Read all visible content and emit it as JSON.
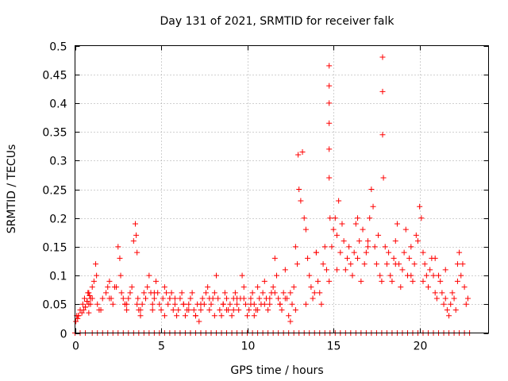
{
  "chart_data": {
    "type": "scatter",
    "title": "Day 131 of 2021, SRMTID for receiver falk",
    "xlabel": "GPS time / hours",
    "ylabel": "SRMTID / TECUs",
    "xlim": [
      0,
      24
    ],
    "ylim": [
      0,
      0.5
    ],
    "xticks": [
      0,
      5,
      10,
      15,
      20
    ],
    "yticks": [
      0,
      0.05,
      0.1,
      0.15,
      0.2,
      0.25,
      0.3,
      0.35,
      0.4,
      0.45,
      0.5
    ],
    "xtick_labels": [
      "0",
      "5",
      "10",
      "15",
      "20"
    ],
    "ytick_labels": [
      "0",
      "0.05",
      "0.1",
      "0.15",
      "0.2",
      "0.25",
      "0.3",
      "0.35",
      "0.4",
      "0.45",
      "0.5"
    ],
    "grid": true,
    "marker": "+",
    "color": "#ff0000",
    "series": [
      {
        "name": "SRMTID",
        "x": [
          0.05,
          0.1,
          0.15,
          0.2,
          0.3,
          0.4,
          0.45,
          0.55,
          0.6,
          0.7,
          0.75,
          0.8,
          0.85,
          0.9,
          1.0,
          1.1,
          1.2,
          1.25,
          1.3,
          1.5,
          1.6,
          1.8,
          1.9,
          2.0,
          2.1,
          2.2,
          2.3,
          2.5,
          2.6,
          2.65,
          2.7,
          2.8,
          2.9,
          3.0,
          3.1,
          3.2,
          3.3,
          3.4,
          3.5,
          3.55,
          3.6,
          3.65,
          3.7,
          3.8,
          3.9,
          4.0,
          4.1,
          4.2,
          4.3,
          4.4,
          4.5,
          4.6,
          4.7,
          4.8,
          4.9,
          5.0,
          5.1,
          5.2,
          5.3,
          5.4,
          5.5,
          5.6,
          5.7,
          5.8,
          5.9,
          6.0,
          6.1,
          6.2,
          6.3,
          6.4,
          6.5,
          6.6,
          6.7,
          6.8,
          6.9,
          7.0,
          7.1,
          7.2,
          7.3,
          7.4,
          7.5,
          7.6,
          7.7,
          7.8,
          7.9,
          8.0,
          8.1,
          8.2,
          8.3,
          8.4,
          8.5,
          8.6,
          8.7,
          8.8,
          8.9,
          9.0,
          9.1,
          9.2,
          9.3,
          9.4,
          9.5,
          9.6,
          9.7,
          9.8,
          9.9,
          10.0,
          10.1,
          10.2,
          10.3,
          10.4,
          10.5,
          10.6,
          10.7,
          10.8,
          10.9,
          11.0,
          11.1,
          11.2,
          11.3,
          11.4,
          11.5,
          11.6,
          11.7,
          11.8,
          11.9,
          12.0,
          12.1,
          12.2,
          12.3,
          12.4,
          12.5,
          12.6,
          12.7,
          12.8,
          12.9,
          12.95,
          13.0,
          13.1,
          13.2,
          13.3,
          13.4,
          13.5,
          13.6,
          13.7,
          13.8,
          13.9,
          14.0,
          14.1,
          14.2,
          14.3,
          14.4,
          14.5,
          14.6,
          14.75,
          14.75,
          14.75,
          14.75,
          14.75,
          14.75,
          14.75,
          14.8,
          14.9,
          15.0,
          15.1,
          15.2,
          15.3,
          15.4,
          15.5,
          15.6,
          15.7,
          15.8,
          15.9,
          16.0,
          16.1,
          16.2,
          16.3,
          16.4,
          16.5,
          16.6,
          16.7,
          16.8,
          16.9,
          17.0,
          17.1,
          17.2,
          17.3,
          17.4,
          17.5,
          17.6,
          17.7,
          17.8,
          17.85,
          17.85,
          17.85,
          17.9,
          18.0,
          18.1,
          18.2,
          18.3,
          18.4,
          18.5,
          18.6,
          18.7,
          18.8,
          18.9,
          19.0,
          19.1,
          19.2,
          19.3,
          19.4,
          19.5,
          19.6,
          19.7,
          19.8,
          19.9,
          20.0,
          20.1,
          20.2,
          20.3,
          20.4,
          20.5,
          20.6,
          20.7,
          20.8,
          20.9,
          21.0,
          21.1,
          21.2,
          21.3,
          21.4,
          21.5,
          21.6,
          21.7,
          21.8,
          21.9,
          22.0,
          22.1,
          22.2,
          22.3,
          22.4,
          22.5,
          22.6,
          22.7,
          22.8,
          0.5,
          0.6,
          0.7,
          0.8,
          0.9,
          1.0,
          2.4,
          2.9,
          3.6,
          4.5,
          5.2,
          5.8,
          6.6,
          7.3,
          8.1,
          8.8,
          9.4,
          10.2,
          10.6,
          11.3,
          11.9,
          12.5,
          0.2,
          0.8,
          1.4,
          2.0,
          3.0,
          3.8,
          4.6,
          5.5,
          6.3,
          7.0,
          7.8,
          8.6,
          9.2,
          9.8,
          10.4,
          11.0,
          11.6,
          12.2,
          12.8,
          13.4,
          14.0,
          15.2,
          16.4,
          17.0,
          18.6,
          19.5,
          20.2,
          20.9,
          21.5,
          22.2,
          0.0,
          0.3,
          0.6,
          1.0,
          1.3,
          1.6,
          1.9,
          2.2,
          2.5,
          2.8,
          3.1,
          3.4,
          3.7,
          4.0,
          4.3,
          4.6,
          4.9,
          5.2,
          5.5,
          5.8,
          6.1,
          6.4,
          6.7,
          7.0,
          7.3,
          7.6,
          7.9,
          8.2,
          8.5,
          8.8,
          9.1,
          9.4,
          9.7,
          10.0,
          10.3,
          10.6,
          10.9,
          11.2,
          11.5,
          11.8,
          12.1,
          12.4,
          12.7,
          13.0,
          13.3,
          13.6,
          13.9,
          14.2,
          14.5,
          14.8,
          15.1,
          15.4,
          15.7,
          16.0,
          16.3,
          16.6,
          16.9,
          17.2,
          17.5,
          17.8,
          18.1,
          18.4,
          18.7,
          19.0,
          19.3,
          19.6,
          19.9,
          20.2,
          20.5,
          20.8,
          21.1,
          21.4,
          21.7,
          22.0,
          22.3,
          22.6,
          22.9
        ],
        "y": [
          0.02,
          0.03,
          0.025,
          0.03,
          0.04,
          0.035,
          0.05,
          0.06,
          0.045,
          0.055,
          0.07,
          0.05,
          0.065,
          0.06,
          0.08,
          0.09,
          0.12,
          0.1,
          0.05,
          0.04,
          0.06,
          0.07,
          0.08,
          0.09,
          0.06,
          0.05,
          0.08,
          0.15,
          0.13,
          0.1,
          0.07,
          0.06,
          0.05,
          0.04,
          0.06,
          0.07,
          0.08,
          0.16,
          0.19,
          0.17,
          0.14,
          0.06,
          0.04,
          0.03,
          0.05,
          0.07,
          0.06,
          0.08,
          0.1,
          0.07,
          0.05,
          0.06,
          0.09,
          0.07,
          0.05,
          0.04,
          0.06,
          0.08,
          0.07,
          0.05,
          0.06,
          0.07,
          0.04,
          0.05,
          0.03,
          0.04,
          0.06,
          0.07,
          0.05,
          0.03,
          0.04,
          0.05,
          0.06,
          0.07,
          0.04,
          0.03,
          0.05,
          0.02,
          0.04,
          0.06,
          0.05,
          0.07,
          0.08,
          0.04,
          0.05,
          0.06,
          0.07,
          0.1,
          0.06,
          0.04,
          0.03,
          0.05,
          0.07,
          0.06,
          0.04,
          0.05,
          0.03,
          0.06,
          0.07,
          0.05,
          0.04,
          0.06,
          0.1,
          0.08,
          0.05,
          0.03,
          0.04,
          0.06,
          0.07,
          0.05,
          0.04,
          0.08,
          0.06,
          0.05,
          0.07,
          0.09,
          0.06,
          0.04,
          0.05,
          0.07,
          0.08,
          0.13,
          0.1,
          0.06,
          0.05,
          0.04,
          0.07,
          0.11,
          0.06,
          0.03,
          0.02,
          0.05,
          0.08,
          0.15,
          0.12,
          0.31,
          0.25,
          0.23,
          0.315,
          0.2,
          0.18,
          0.13,
          0.1,
          0.08,
          0.06,
          0.07,
          0.14,
          0.09,
          0.07,
          0.05,
          0.12,
          0.15,
          0.11,
          0.09,
          0.465,
          0.43,
          0.4,
          0.365,
          0.32,
          0.27,
          0.2,
          0.15,
          0.18,
          0.2,
          0.17,
          0.23,
          0.14,
          0.19,
          0.16,
          0.11,
          0.13,
          0.15,
          0.12,
          0.1,
          0.14,
          0.19,
          0.2,
          0.16,
          0.09,
          0.18,
          0.12,
          0.14,
          0.16,
          0.2,
          0.25,
          0.22,
          0.15,
          0.12,
          0.17,
          0.1,
          0.09,
          0.48,
          0.42,
          0.345,
          0.27,
          0.15,
          0.12,
          0.14,
          0.1,
          0.09,
          0.13,
          0.16,
          0.19,
          0.12,
          0.08,
          0.11,
          0.14,
          0.18,
          0.1,
          0.13,
          0.15,
          0.09,
          0.12,
          0.17,
          0.16,
          0.22,
          0.2,
          0.14,
          0.12,
          0.1,
          0.08,
          0.11,
          0.13,
          0.1,
          0.07,
          0.06,
          0.1,
          0.09,
          0.07,
          0.05,
          0.06,
          0.04,
          0.03,
          0.05,
          0.07,
          0.06,
          0.04,
          0.09,
          0.14,
          0.1,
          0.12,
          0.08,
          0.05,
          0.06,
          0.04,
          0.045,
          0.055,
          0.07,
          0.05,
          0.06,
          0.08,
          0.05,
          0.05,
          0.04,
          0.03,
          0.06,
          0.04,
          0.05,
          0.03,
          0.04,
          0.06,
          0.05,
          0.04,
          0.06,
          0.05,
          0.07,
          0.03,
          0.035,
          0.04,
          0.06,
          0.05,
          0.04,
          0.07,
          0.06,
          0.05,
          0.03,
          0.06,
          0.05,
          0.04,
          0.06,
          0.03,
          0.05,
          0.07,
          0.06,
          0.04,
          0.05,
          0.14,
          0.11,
          0.13,
          0.15,
          0.12,
          0.1,
          0.09,
          0.13,
          0.11,
          0.12,
          0,
          0,
          0,
          0,
          0,
          0,
          0,
          0,
          0,
          0,
          0,
          0,
          0,
          0,
          0,
          0,
          0,
          0,
          0,
          0,
          0,
          0,
          0,
          0,
          0,
          0,
          0,
          0,
          0,
          0,
          0,
          0,
          0,
          0,
          0,
          0,
          0,
          0,
          0,
          0,
          0,
          0,
          0,
          0,
          0,
          0,
          0,
          0,
          0,
          0,
          0,
          0,
          0,
          0,
          0,
          0,
          0,
          0,
          0,
          0,
          0,
          0,
          0,
          0,
          0,
          0,
          0,
          0,
          0,
          0,
          0,
          0,
          0,
          0,
          0,
          0,
          0
        ]
      }
    ]
  }
}
